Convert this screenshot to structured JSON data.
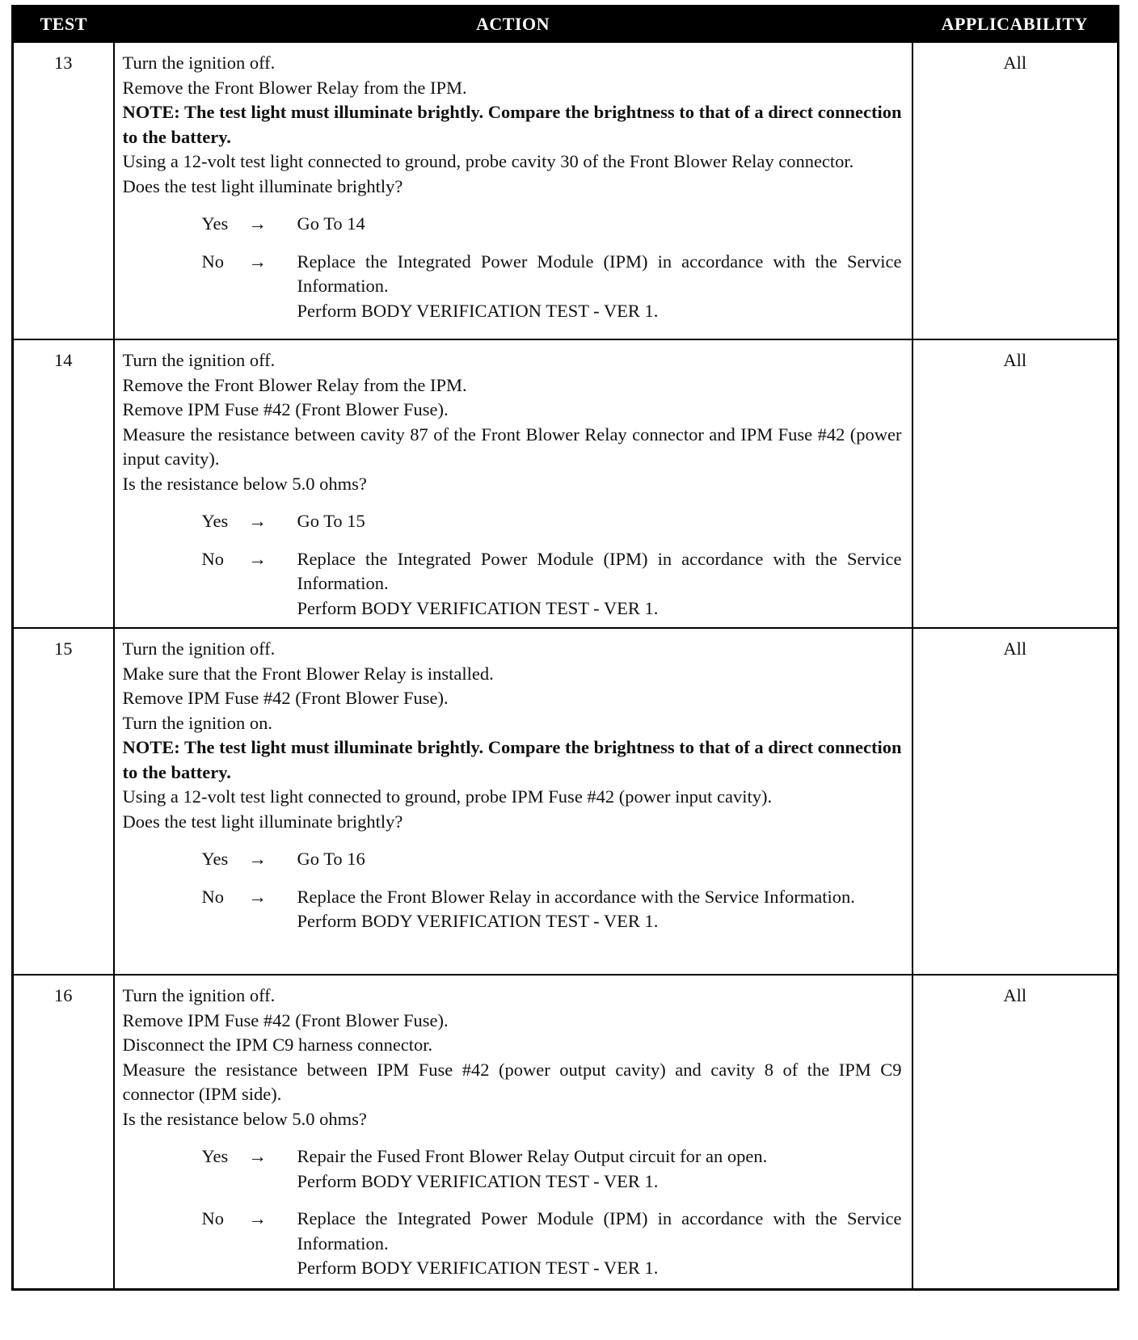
{
  "headers": {
    "test": "TEST",
    "action": "ACTION",
    "applicability": "APPLICABILITY"
  },
  "arrow": "→",
  "rows": [
    {
      "test": "13",
      "applicability": "All",
      "lines": [
        {
          "text": "Turn the ignition off.",
          "bold": false
        },
        {
          "text": "Remove the Front Blower Relay from the IPM.",
          "bold": false
        },
        {
          "text": "NOTE: The test light must illuminate brightly. Compare the brightness to that of a direct connection to the battery.",
          "bold": true
        },
        {
          "text": "Using a 12-volt test light connected to ground, probe cavity 30 of the Front Blower Relay connector.",
          "bold": false
        },
        {
          "text": "Does the test light illuminate brightly?",
          "bold": false
        }
      ],
      "yes": {
        "label": "Yes",
        "result": [
          "Go To   14"
        ]
      },
      "no": {
        "label": "No",
        "result": [
          "Replace the Integrated Power Module (IPM) in accordance with the Service Information.",
          "Perform BODY VERIFICATION TEST - VER 1."
        ]
      }
    },
    {
      "test": "14",
      "applicability": "All",
      "lines": [
        {
          "text": "Turn the ignition off.",
          "bold": false
        },
        {
          "text": "Remove the Front Blower Relay from the IPM.",
          "bold": false
        },
        {
          "text": "Remove IPM Fuse #42 (Front Blower Fuse).",
          "bold": false
        },
        {
          "text": "Measure the resistance between cavity 87 of the Front Blower Relay connector and IPM Fuse #42 (power input cavity).",
          "bold": false
        },
        {
          "text": "Is the resistance below 5.0 ohms?",
          "bold": false
        }
      ],
      "yes": {
        "label": "Yes",
        "result": [
          "Go To   15"
        ]
      },
      "no": {
        "label": "No",
        "result": [
          "Replace the Integrated Power Module (IPM) in accordance with the Service Information.",
          "Perform BODY VERIFICATION TEST - VER 1."
        ]
      }
    },
    {
      "test": "15",
      "applicability": "All",
      "lines": [
        {
          "text": "Turn the ignition off.",
          "bold": false
        },
        {
          "text": "Make sure that the Front Blower Relay is installed.",
          "bold": false
        },
        {
          "text": "Remove IPM Fuse #42 (Front Blower Fuse).",
          "bold": false
        },
        {
          "text": "Turn the ignition on.",
          "bold": false
        },
        {
          "text": "NOTE: The test light must illuminate brightly. Compare the brightness to that of a direct connection to the battery.",
          "bold": true
        },
        {
          "text": "Using a 12-volt test light connected to ground, probe IPM Fuse #42 (power input cavity).",
          "bold": false
        },
        {
          "text": "Does the test light illuminate brightly?",
          "bold": false
        }
      ],
      "yes": {
        "label": "Yes",
        "result": [
          "Go To   16"
        ]
      },
      "no": {
        "label": "No",
        "result": [
          "Replace the Front Blower Relay in accordance with the Service Information.",
          "Perform BODY VERIFICATION TEST - VER 1."
        ]
      }
    },
    {
      "test": "16",
      "applicability": "All",
      "lines": [
        {
          "text": "Turn the ignition off.",
          "bold": false
        },
        {
          "text": "Remove IPM Fuse #42 (Front Blower Fuse).",
          "bold": false
        },
        {
          "text": "Disconnect the IPM C9 harness connector.",
          "bold": false
        },
        {
          "text": "Measure the resistance between IPM Fuse #42 (power output cavity) and cavity 8 of the IPM C9 connector (IPM side).",
          "bold": false
        },
        {
          "text": "Is the resistance below 5.0 ohms?",
          "bold": false
        }
      ],
      "yes": {
        "label": "Yes",
        "result": [
          "Repair the Fused Front Blower Relay Output circuit for an open.",
          "Perform BODY VERIFICATION TEST - VER 1."
        ]
      },
      "no": {
        "label": "No",
        "result": [
          "Replace the Integrated Power Module (IPM) in accordance with the Service Information.",
          "Perform BODY VERIFICATION TEST - VER 1."
        ]
      }
    }
  ]
}
